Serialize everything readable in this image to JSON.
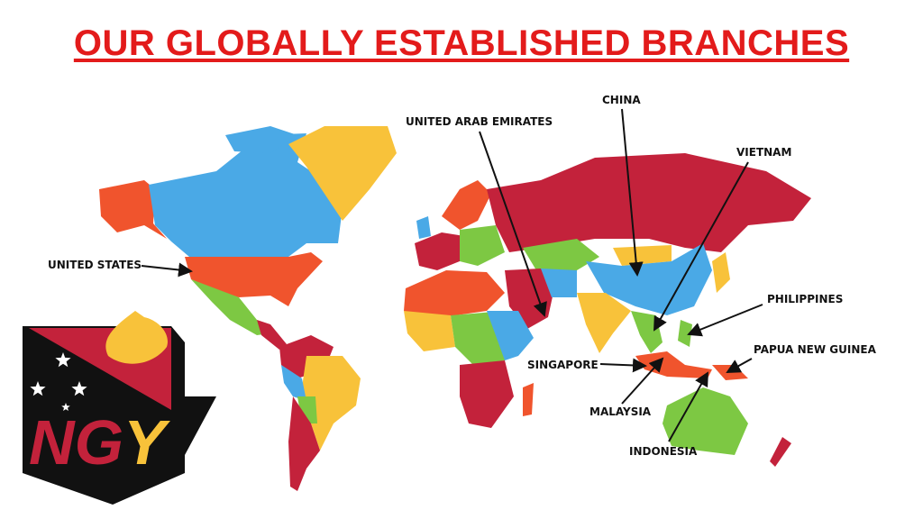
{
  "title": "OUR GLOBALLY ESTABLISHED BRANCHES",
  "logo": {
    "text": "NGY"
  },
  "colors": {
    "title": "#e31b1b",
    "blue": "#4aa9e6",
    "yellow": "#f8c23a",
    "orange": "#f0542d",
    "crimson": "#c3223b",
    "green": "#7dc843"
  },
  "branches": [
    {
      "name": "UNITED STATES"
    },
    {
      "name": "UNITED ARAB EMIRATES"
    },
    {
      "name": "CHINA"
    },
    {
      "name": "VIETNAM"
    },
    {
      "name": "PHILIPPINES"
    },
    {
      "name": "PAPUA NEW GUINEA"
    },
    {
      "name": "SINGAPORE"
    },
    {
      "name": "MALAYSIA"
    },
    {
      "name": "INDONESIA"
    }
  ]
}
